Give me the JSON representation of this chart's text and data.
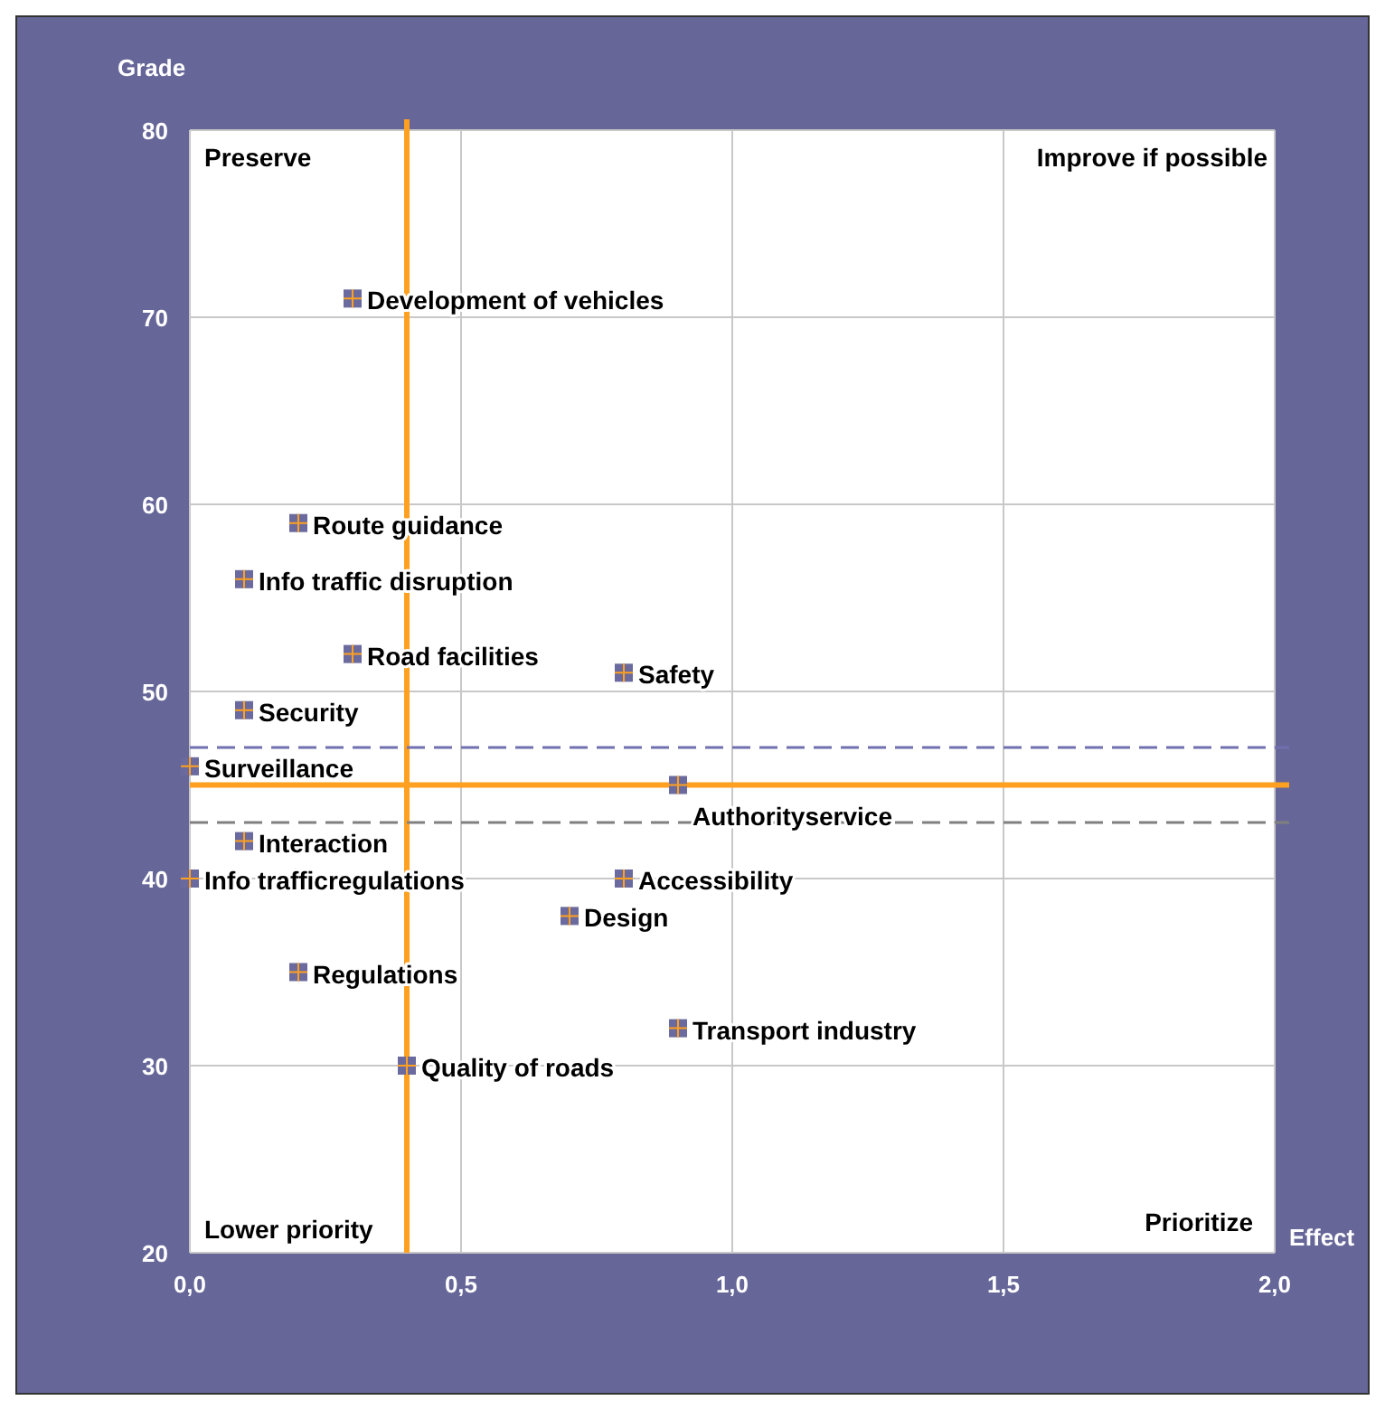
{
  "chart_data": {
    "type": "scatter",
    "xlabel": "Effect",
    "ylabel": "Grade",
    "xlim": [
      0,
      2
    ],
    "ylim": [
      20,
      80
    ],
    "xticks": [
      {
        "value": 0,
        "label": "0,0"
      },
      {
        "value": 0.5,
        "label": "0,5"
      },
      {
        "value": 1,
        "label": "1,0"
      },
      {
        "value": 1.5,
        "label": "1,5"
      },
      {
        "value": 2,
        "label": "2,0"
      }
    ],
    "yticks": [
      20,
      30,
      40,
      50,
      60,
      70,
      80
    ],
    "grid": true,
    "marker": "square",
    "series": [
      {
        "color": "#6a6a9e",
        "x": [
          0.3,
          0.2,
          0.1,
          0.3,
          0.8,
          0.1,
          0.0,
          0.9,
          0.1,
          0.0,
          0.8,
          0.7,
          0.2,
          0.9,
          0.4
        ],
        "values": [
          71,
          59,
          56,
          52,
          51,
          49,
          46,
          45,
          42,
          40,
          40,
          38,
          35,
          32,
          30
        ]
      }
    ],
    "ref_lines": [
      {
        "axis": "x",
        "value": 0.4,
        "color": "#ffa020",
        "line_style": "solid"
      },
      {
        "axis": "y",
        "value": 45,
        "color": "#ffa020",
        "line_style": "solid"
      },
      {
        "axis": "y",
        "value": 47,
        "color": "#7070b0",
        "line_style": "dashed"
      },
      {
        "axis": "y",
        "value": 43,
        "color": "#808080",
        "line_style": "dashed"
      }
    ],
    "annotations": [
      "Preserve",
      "Improve if possible",
      "Lower priority",
      "Prioritize",
      {
        "text": "Development of vehicles",
        "x": 0.3,
        "y": 71
      },
      {
        "text": "Route guidance",
        "x": 0.2,
        "y": 59
      },
      {
        "text": "Info traffic disruption",
        "x": 0.1,
        "y": 56
      },
      {
        "text": "Road facilities",
        "x": 0.3,
        "y": 52
      },
      {
        "text": "Safety",
        "x": 0.8,
        "y": 51
      },
      {
        "text": "Security",
        "x": 0.1,
        "y": 49
      },
      {
        "text": "Surveillance",
        "x": 0.0,
        "y": 46
      },
      {
        "text": "Authorityservice",
        "x": 0.9,
        "y": 45
      },
      {
        "text": "Interaction",
        "x": 0.1,
        "y": 42
      },
      {
        "text": "Info trafficregulations",
        "x": 0.0,
        "y": 40
      },
      {
        "text": "Accessibility",
        "x": 0.8,
        "y": 40
      },
      {
        "text": "Design",
        "x": 0.7,
        "y": 38
      },
      {
        "text": "Regulations",
        "x": 0.2,
        "y": 35
      },
      {
        "text": "Transport industry",
        "x": 0.9,
        "y": 32
      },
      {
        "text": "Quality of roads",
        "x": 0.4,
        "y": 30
      }
    ]
  }
}
